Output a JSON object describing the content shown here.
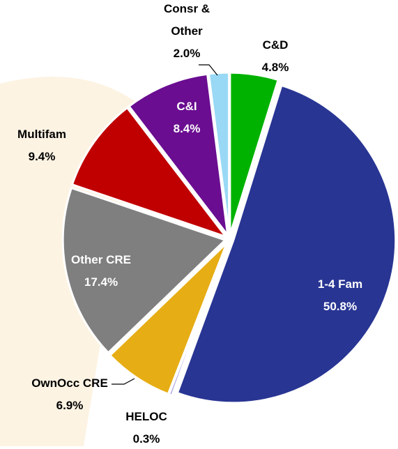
{
  "chart_data": {
    "type": "pie",
    "categories": [
      "C&D",
      "1-4 Fam",
      "HELOC",
      "OwnOcc CRE",
      "Other CRE",
      "Multifam",
      "C&I",
      "Consr & Other"
    ],
    "values": [
      4.8,
      50.8,
      0.3,
      6.9,
      17.4,
      9.4,
      8.4,
      2.0
    ],
    "value_labels": [
      "4.8%",
      "50.8%",
      "0.3%",
      "6.9%",
      "17.4%",
      "9.4%",
      "8.4%",
      "2.0%"
    ],
    "colors": [
      "#00b200",
      "#283593",
      "#a9a3d9",
      "#e6ad14",
      "#7f7f7f",
      "#c00000",
      "#6a0d91",
      "#99d9f5"
    ]
  }
}
